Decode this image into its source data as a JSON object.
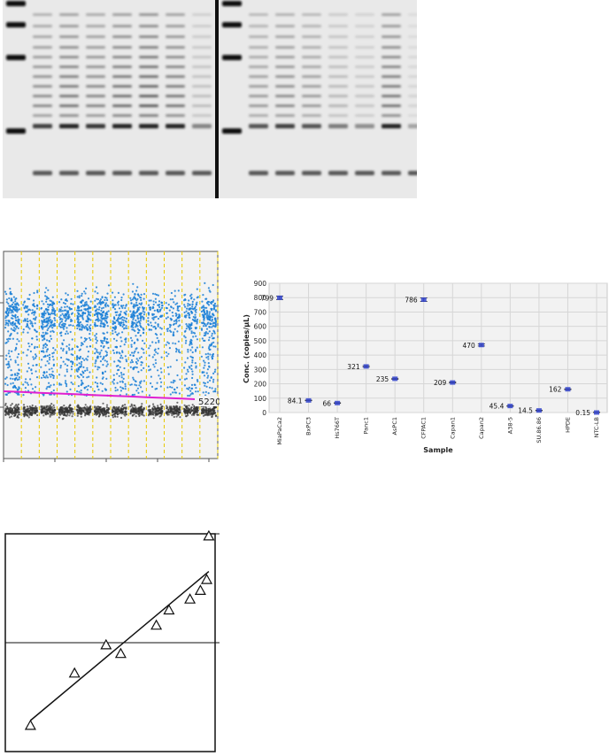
{
  "gel": {
    "lanes_left": 7,
    "lanes_right": 7,
    "left_intensity": [
      0.65,
      0.8,
      0.7,
      0.85,
      0.95,
      0.8,
      0.3
    ],
    "right_intensity": [
      0.55,
      0.65,
      0.55,
      0.35,
      0.25,
      0.8,
      0.15
    ]
  },
  "ddpcr": {
    "threshold_label": "5220",
    "wells": 12
  },
  "chart_data": [
    {
      "type": "scatter",
      "title": "",
      "xlabel": "Sample",
      "ylabel": "Conc. (copies/µL)",
      "ylim": [
        0,
        900
      ],
      "yticks": [
        "0",
        "100",
        "200",
        "300",
        "400",
        "500",
        "600",
        "700",
        "800",
        "900"
      ],
      "categories": [
        "MiaPaCa2",
        "BxPC3",
        "Hs766T",
        "Panc1",
        "AsPC1",
        "CFPAC1",
        "Capan1",
        "Capan2",
        "A38-5",
        "SU.86.86",
        "HPDE",
        "NTC-LB"
      ],
      "values": [
        799,
        84.1,
        66,
        321,
        235,
        786,
        209,
        470,
        45.4,
        14.5,
        162,
        0.15
      ],
      "value_labels": [
        "799",
        "84.1",
        "66",
        "321",
        "235",
        "786",
        "209",
        "470",
        "45.4",
        "14.5",
        "162",
        "0.15"
      ],
      "grid": true,
      "marker_color": "#3344cc"
    },
    {
      "type": "scatter",
      "title": "",
      "xlabel": "",
      "ylabel": "",
      "x": [
        0.12,
        0.33,
        0.48,
        0.55,
        0.72,
        0.78,
        0.88,
        0.93,
        0.96,
        0.97
      ],
      "y": [
        0.12,
        0.36,
        0.49,
        0.45,
        0.58,
        0.65,
        0.7,
        0.74,
        0.79,
        0.99
      ],
      "xlim": [
        0,
        1
      ],
      "ylim": [
        0,
        1
      ],
      "fit_line": true,
      "reference_line_y": 0.5,
      "marker": "triangle"
    }
  ]
}
